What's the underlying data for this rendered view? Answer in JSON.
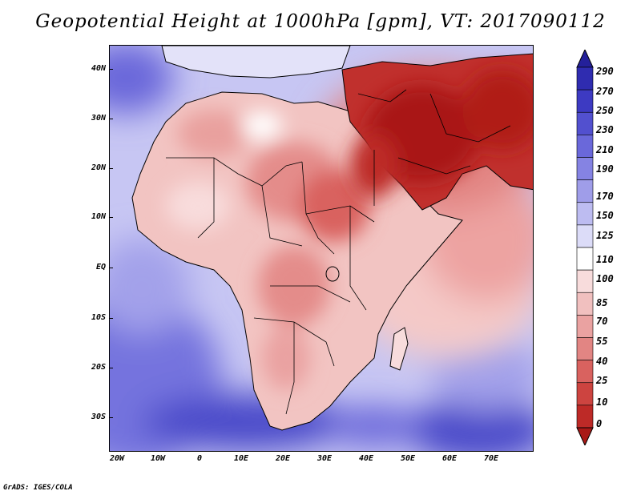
{
  "title": "Geopotential Height at 1000hPa [gpm], VT: 2017090112",
  "credit": "GrADS: IGES/COLA",
  "y_axis_labels": [
    "40N",
    "30N",
    "20N",
    "10N",
    "EQ",
    "10S",
    "20S",
    "30S"
  ],
  "x_axis_labels": [
    "20W",
    "10W",
    "0",
    "10E",
    "20E",
    "30E",
    "40E",
    "50E",
    "60E",
    "70E"
  ],
  "colorbar": {
    "labels": [
      "290",
      "270",
      "250",
      "230",
      "210",
      "190",
      "170",
      "150",
      "125",
      "110",
      "100",
      "85",
      "70",
      "55",
      "40",
      "25",
      "10",
      "0"
    ],
    "colors": [
      "#24209a",
      "#2f2cb0",
      "#3d3ac2",
      "#5250cf",
      "#6a68da",
      "#8583e3",
      "#9f9de9",
      "#bdbcf1",
      "#dcdcf8",
      "#ffffff",
      "#f8dcdc",
      "#f1c0bf",
      "#eaa2a1",
      "#e28583",
      "#d9625f",
      "#cd4440",
      "#bd2a27",
      "#a91917"
    ]
  },
  "map": {
    "ocean_color": "#6c6ad8",
    "land_color": "#f2c2c0",
    "hot_color": "#b01c19"
  }
}
